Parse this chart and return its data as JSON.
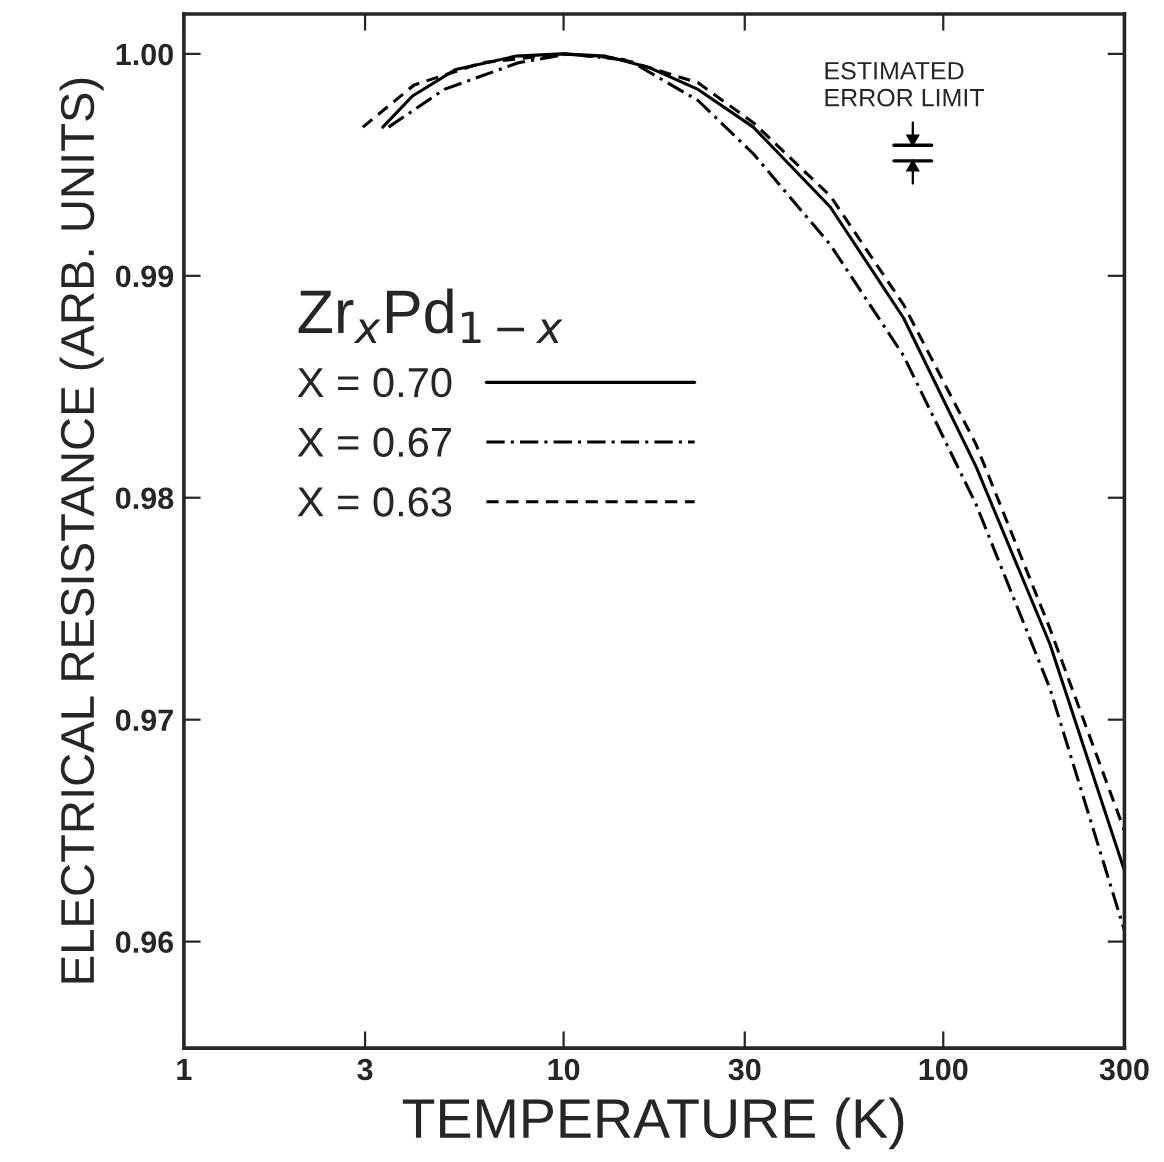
{
  "chart_data": {
    "type": "line",
    "xlabel": "TEMPERATURE (K)",
    "ylabel": "ELECTRICAL RESISTANCE (ARB. UNITS)",
    "legend_title": "Zr$_{x}$Pd$_{1−x}$",
    "legend": "center left",
    "log": "x",
    "grid": false,
    "marker": "none",
    "xlim": [
      1,
      300
    ],
    "xticks": [
      1,
      3,
      10,
      30,
      100,
      300
    ],
    "ylim": [
      0.9552,
      1.0018
    ],
    "yticks": [
      {
        "value": 0.96,
        "label": "0.96"
      },
      {
        "value": 0.97,
        "label": "0.97"
      },
      {
        "value": 0.98,
        "label": "0.98"
      },
      {
        "value": 0.99,
        "label": "0.99"
      },
      {
        "value": 1.0,
        "label": "1.00"
      }
    ],
    "annotations": [
      "ESTIMATED\nERROR LIMIT"
    ],
    "series": [
      {
        "name": "X = 0.70",
        "color": "#000000",
        "line_style": "solid",
        "x": [
          3.34,
          4.0,
          5.2,
          7.5,
          9.9,
          12.9,
          16.7,
          22.6,
          31.6,
          50.4,
          78.6,
          122,
          191,
          300
        ],
        "values": [
          0.9967,
          0.9981,
          0.9993,
          0.9999,
          1.0,
          0.9999,
          0.9994,
          0.9984,
          0.9967,
          0.9931,
          0.9881,
          0.9814,
          0.9734,
          0.9632
        ]
      },
      {
        "name": "X = 0.67",
        "color": "#000000",
        "line_style": "dashdot",
        "x": [
          3.46,
          4.85,
          7.6,
          10.3,
          14.9,
          22.6,
          31.6,
          50.4,
          78.6,
          122,
          191,
          300
        ],
        "values": [
          0.9967,
          0.9984,
          0.9996,
          1.0,
          0.9997,
          0.9979,
          0.9955,
          0.9914,
          0.9864,
          0.9797,
          0.9714,
          0.9605
        ]
      },
      {
        "name": "X = 0.63",
        "color": "#000000",
        "line_style": "dashed",
        "x": [
          2.96,
          4.04,
          6.1,
          10.0,
          14.0,
          22.6,
          31.6,
          50.4,
          78.6,
          122,
          191,
          300
        ],
        "values": [
          0.9967,
          0.9986,
          0.9996,
          1.0,
          0.9998,
          0.9987,
          0.9969,
          0.9936,
          0.9887,
          0.9824,
          0.9741,
          0.965
        ]
      }
    ]
  }
}
